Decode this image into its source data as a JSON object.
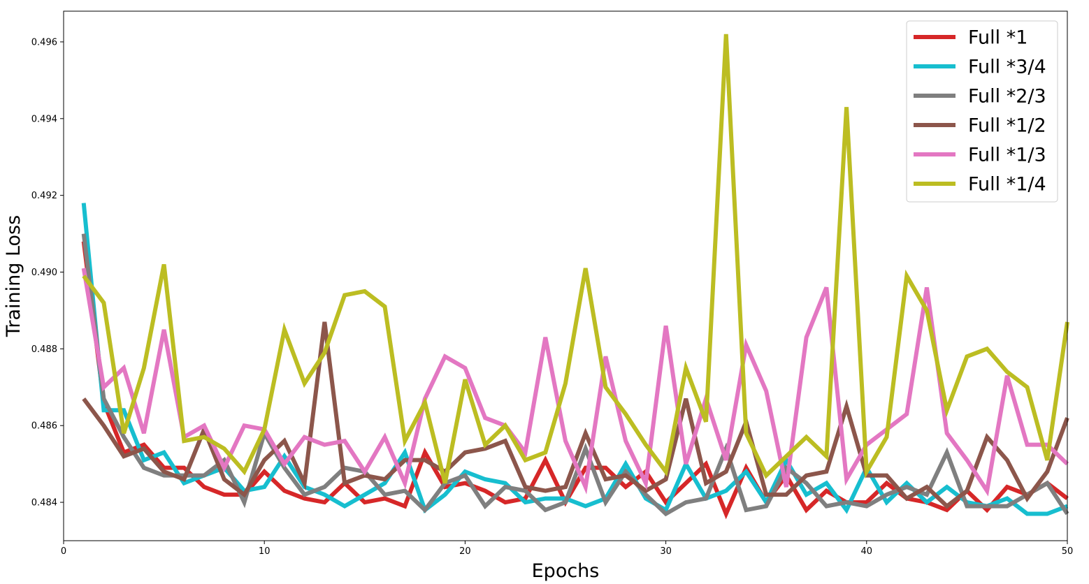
{
  "chart_data": {
    "type": "line",
    "xlabel": "Epochs",
    "ylabel": "Training Loss",
    "xlim": [
      0,
      50
    ],
    "ylim": [
      0.483,
      0.4968
    ],
    "xticks": [
      0,
      10,
      20,
      30,
      40,
      50
    ],
    "yticks": [
      0.484,
      0.486,
      0.488,
      0.49,
      0.492,
      0.494,
      0.496
    ],
    "grid": false,
    "legend_position": "top-right",
    "series": [
      {
        "name": "Full *1",
        "color": "#d62728",
        "x": [
          1,
          2,
          3,
          4,
          5,
          6,
          7,
          8,
          9,
          10,
          11,
          12,
          13,
          14,
          15,
          16,
          17,
          18,
          19,
          20,
          21,
          22,
          23,
          24,
          25,
          26,
          27,
          28,
          29,
          30,
          31,
          32,
          33,
          34,
          35,
          36,
          37,
          38,
          39,
          40,
          41,
          42,
          43,
          44,
          45,
          46,
          47,
          48,
          49,
          50
        ],
        "values": [
          0.4908,
          0.4866,
          0.4853,
          0.4855,
          0.4849,
          0.4849,
          0.4844,
          0.4842,
          0.4842,
          0.4848,
          0.4843,
          0.4841,
          0.484,
          0.4845,
          0.484,
          0.4841,
          0.4839,
          0.4853,
          0.4844,
          0.4845,
          0.4843,
          0.484,
          0.4841,
          0.4851,
          0.484,
          0.4849,
          0.4849,
          0.4844,
          0.4848,
          0.484,
          0.4845,
          0.485,
          0.4837,
          0.4849,
          0.484,
          0.4847,
          0.4838,
          0.4843,
          0.484,
          0.484,
          0.4845,
          0.4841,
          0.484,
          0.4838,
          0.4843,
          0.4838,
          0.4844,
          0.4842,
          0.4845,
          0.4841
        ]
      },
      {
        "name": "Full *3/4",
        "color": "#17becf",
        "x": [
          1,
          2,
          3,
          4,
          5,
          6,
          7,
          8,
          9,
          10,
          11,
          12,
          13,
          14,
          15,
          16,
          17,
          18,
          19,
          20,
          21,
          22,
          23,
          24,
          25,
          26,
          27,
          28,
          29,
          30,
          31,
          32,
          33,
          34,
          35,
          36,
          37,
          38,
          39,
          40,
          41,
          42,
          43,
          44,
          45,
          46,
          47,
          48,
          49,
          50
        ],
        "values": [
          0.4918,
          0.4864,
          0.4864,
          0.4851,
          0.4853,
          0.4845,
          0.4847,
          0.4849,
          0.4843,
          0.4844,
          0.4852,
          0.4844,
          0.4842,
          0.4839,
          0.4842,
          0.4845,
          0.4853,
          0.4838,
          0.4842,
          0.4848,
          0.4846,
          0.4845,
          0.484,
          0.4841,
          0.4841,
          0.4839,
          0.4841,
          0.485,
          0.4841,
          0.4838,
          0.485,
          0.4841,
          0.4843,
          0.4848,
          0.484,
          0.4851,
          0.4842,
          0.4845,
          0.4838,
          0.4849,
          0.484,
          0.4845,
          0.484,
          0.4844,
          0.484,
          0.4839,
          0.4841,
          0.4837,
          0.4837,
          0.4839
        ]
      },
      {
        "name": "Full *2/3",
        "color": "#7f7f7f",
        "x": [
          1,
          2,
          3,
          4,
          5,
          6,
          7,
          8,
          9,
          10,
          11,
          12,
          13,
          14,
          15,
          16,
          17,
          18,
          19,
          20,
          21,
          22,
          23,
          24,
          25,
          26,
          27,
          28,
          29,
          30,
          31,
          32,
          33,
          34,
          35,
          36,
          37,
          38,
          39,
          40,
          41,
          42,
          43,
          44,
          45,
          46,
          47,
          48,
          49,
          50
        ],
        "values": [
          0.491,
          0.4867,
          0.4857,
          0.4849,
          0.4847,
          0.4847,
          0.4847,
          0.4851,
          0.484,
          0.4858,
          0.4849,
          0.4842,
          0.4844,
          0.4849,
          0.4848,
          0.4842,
          0.4843,
          0.4838,
          0.4845,
          0.4847,
          0.4839,
          0.4844,
          0.4843,
          0.4838,
          0.484,
          0.4854,
          0.484,
          0.4848,
          0.4842,
          0.4837,
          0.484,
          0.4841,
          0.4854,
          0.4838,
          0.4839,
          0.4849,
          0.4845,
          0.4839,
          0.484,
          0.4839,
          0.4842,
          0.4844,
          0.4842,
          0.4853,
          0.4839,
          0.4839,
          0.4839,
          0.4842,
          0.4845,
          0.4837
        ]
      },
      {
        "name": "Full *1/2",
        "color": "#8c564b",
        "x": [
          1,
          2,
          3,
          4,
          5,
          6,
          7,
          8,
          9,
          10,
          11,
          12,
          13,
          14,
          15,
          16,
          17,
          18,
          19,
          20,
          21,
          22,
          23,
          24,
          25,
          26,
          27,
          28,
          29,
          30,
          31,
          32,
          33,
          34,
          35,
          36,
          37,
          38,
          39,
          40,
          41,
          42,
          43,
          44,
          45,
          46,
          47,
          48,
          49,
          50
        ],
        "values": [
          0.4867,
          0.486,
          0.4852,
          0.4854,
          0.4848,
          0.4846,
          0.4859,
          0.4846,
          0.4842,
          0.4851,
          0.4856,
          0.4845,
          0.4887,
          0.4845,
          0.4847,
          0.4846,
          0.4851,
          0.4851,
          0.4848,
          0.4853,
          0.4854,
          0.4856,
          0.4844,
          0.4843,
          0.4844,
          0.4858,
          0.4846,
          0.4847,
          0.4843,
          0.4846,
          0.4867,
          0.4845,
          0.4848,
          0.4861,
          0.4842,
          0.4842,
          0.4847,
          0.4848,
          0.4865,
          0.4847,
          0.4847,
          0.4841,
          0.4844,
          0.4839,
          0.4843,
          0.4857,
          0.4851,
          0.4841,
          0.4848,
          0.4862
        ]
      },
      {
        "name": "Full *1/3",
        "color": "#e377c2",
        "x": [
          1,
          2,
          3,
          4,
          5,
          6,
          7,
          8,
          9,
          10,
          11,
          12,
          13,
          14,
          15,
          16,
          17,
          18,
          19,
          20,
          21,
          22,
          23,
          24,
          25,
          26,
          27,
          28,
          29,
          30,
          31,
          32,
          33,
          34,
          35,
          36,
          37,
          38,
          39,
          40,
          41,
          42,
          43,
          44,
          45,
          46,
          47,
          48,
          49,
          50
        ],
        "values": [
          0.4901,
          0.487,
          0.4875,
          0.4858,
          0.4885,
          0.4857,
          0.486,
          0.4849,
          0.486,
          0.4859,
          0.485,
          0.4857,
          0.4855,
          0.4856,
          0.4848,
          0.4857,
          0.4845,
          0.4867,
          0.4878,
          0.4875,
          0.4862,
          0.486,
          0.4853,
          0.4883,
          0.4856,
          0.4844,
          0.4878,
          0.4856,
          0.4845,
          0.4886,
          0.485,
          0.4867,
          0.4851,
          0.4881,
          0.4869,
          0.4844,
          0.4883,
          0.4896,
          0.4846,
          0.4855,
          0.4859,
          0.4863,
          0.4896,
          0.4858,
          0.4851,
          0.4843,
          0.4873,
          0.4855,
          0.4855,
          0.485
        ]
      },
      {
        "name": "Full *1/4",
        "color": "#bcbd22",
        "x": [
          1,
          2,
          3,
          4,
          5,
          6,
          7,
          8,
          9,
          10,
          11,
          12,
          13,
          14,
          15,
          16,
          17,
          18,
          19,
          20,
          21,
          22,
          23,
          24,
          25,
          26,
          27,
          28,
          29,
          30,
          31,
          32,
          33,
          34,
          35,
          36,
          37,
          38,
          39,
          40,
          41,
          42,
          43,
          44,
          45,
          46,
          47,
          48,
          49,
          50
        ],
        "values": [
          0.4899,
          0.4892,
          0.4858,
          0.4875,
          0.4902,
          0.4856,
          0.4857,
          0.4854,
          0.4848,
          0.4859,
          0.4885,
          0.4871,
          0.4879,
          0.4894,
          0.4895,
          0.4891,
          0.4856,
          0.4866,
          0.4845,
          0.4872,
          0.4855,
          0.486,
          0.4851,
          0.4853,
          0.4871,
          0.4901,
          0.487,
          0.4863,
          0.4855,
          0.4848,
          0.4875,
          0.4861,
          0.4962,
          0.4858,
          0.4847,
          0.4852,
          0.4857,
          0.4852,
          0.4943,
          0.4848,
          0.4857,
          0.4899,
          0.489,
          0.4864,
          0.4878,
          0.488,
          0.4874,
          0.487,
          0.4851,
          0.4887
        ]
      }
    ]
  }
}
